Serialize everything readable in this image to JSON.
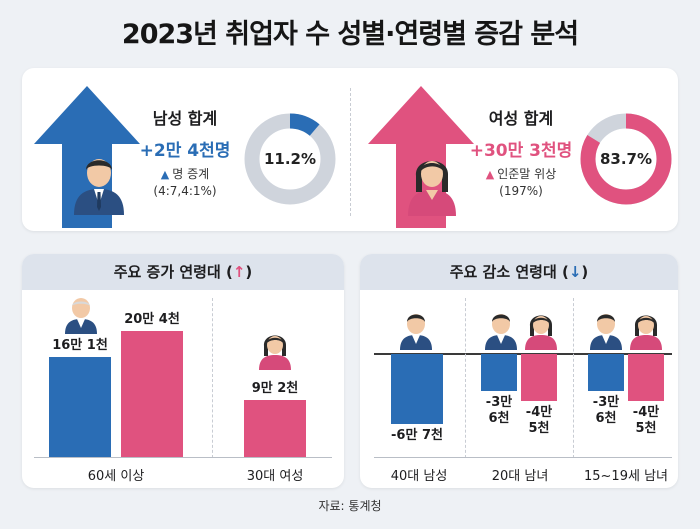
{
  "title": "2023년 취업자 수 성별·연령별 증감 분석",
  "colors": {
    "male": "#2a6db5",
    "female": "#e0527f",
    "donut_track": "#cfd4dc",
    "panel_header": "#dde3ec"
  },
  "male": {
    "heading": "남성 합계",
    "value": "+2만 4천명",
    "note_line1": "명 증계",
    "note_line2": "(4:7,4:1%)",
    "triangle": "▲",
    "share_label": "11.2%",
    "share": 11.2,
    "icon": "arrow-up-icon"
  },
  "female": {
    "heading": "여성 합계",
    "value": "+30만 3천명",
    "note_line1": "인준말 위상",
    "note_line2": "(197%)",
    "triangle": "▲",
    "share_label": "83.7%",
    "share": 83.7,
    "icon": "arrow-up-icon"
  },
  "increase_panel": {
    "title": "주요 증가 연령대 (",
    "arrow": "↑",
    "title_end": ")",
    "groups": [
      {
        "category": "60세 이상",
        "bars": [
          {
            "sex": "male",
            "label": "16만 1천",
            "value": 16.1
          },
          {
            "sex": "female",
            "label": "20만 4천",
            "value": 20.4
          }
        ]
      },
      {
        "category": "30대 여성",
        "bars": [
          {
            "sex": "female",
            "label": "9만 2천",
            "value": 9.2
          }
        ]
      }
    ]
  },
  "decrease_panel": {
    "title": "주요 감소 연령대 (",
    "arrow": "↓",
    "title_end": ")",
    "groups": [
      {
        "category": "40대 남성",
        "bars": [
          {
            "sex": "male",
            "label": "-6만 7천",
            "value": -6.7
          }
        ]
      },
      {
        "category": "20대 남녀",
        "bars": [
          {
            "sex": "male",
            "label_l1": "-3만",
            "label_l2": "6천",
            "value": -3.6
          },
          {
            "sex": "female",
            "label_l1": "-4만",
            "label_l2": "5천",
            "value": -4.5
          }
        ]
      },
      {
        "category": "15~19세 남녀",
        "bars": [
          {
            "sex": "male",
            "label_l1": "-3만",
            "label_l2": "6천",
            "value": -3.6
          },
          {
            "sex": "female",
            "label_l1": "-4만",
            "label_l2": "5천",
            "value": -4.5
          }
        ]
      }
    ]
  },
  "chart_data": [
    {
      "type": "bar",
      "title": "주요 증가 연령대 (↑)",
      "categories": [
        "60세 이상",
        "30대 여성"
      ],
      "series": [
        {
          "name": "",
          "values": [
            16.1,
            null
          ]
        },
        {
          "name": "",
          "values": [
            20.4,
            9.2
          ]
        }
      ]
    },
    {
      "type": "bar",
      "title": "주요 감소 연령대 (↓)",
      "categories": [
        "40대 남성",
        "20대 남녀",
        "15~19세 남녀"
      ],
      "series": [
        {
          "name": "",
          "values": [
            -6.7,
            -3.6,
            -3.6
          ]
        },
        {
          "name": "",
          "values": [
            null,
            -4.5,
            -4.5
          ]
        }
      ]
    }
  ],
  "source": "자료: 통계청"
}
